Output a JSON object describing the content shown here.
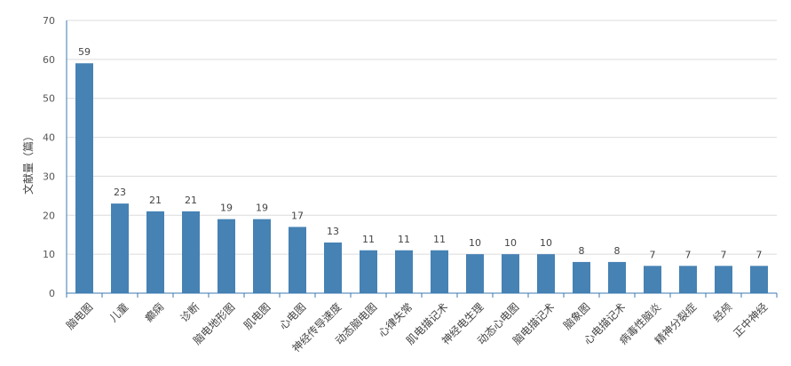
{
  "chart_data": {
    "type": "bar",
    "title": "",
    "xlabel": "",
    "ylabel": "文献量（篇）",
    "ylim": [
      0,
      70
    ],
    "yticks": [
      0,
      10,
      20,
      30,
      40,
      50,
      60,
      70
    ],
    "grid": true,
    "categories": [
      "脑电图",
      "儿童",
      "癫痫",
      "诊断",
      "脑电地形图",
      "肌电图",
      "心电图",
      "神经传导速度",
      "动态脑电图",
      "心律失常",
      "肌电描记术",
      "神经电生理",
      "动态心电图",
      "脑电描记术",
      "脑象图",
      "心电描记术",
      "病毒性脑炎",
      "精神分裂症",
      "经颅",
      "正中神经"
    ],
    "values": [
      59,
      23,
      21,
      21,
      19,
      19,
      17,
      13,
      11,
      11,
      11,
      10,
      10,
      10,
      8,
      8,
      7,
      7,
      7,
      7
    ],
    "bar_color": "#4682b4",
    "data_labels": true
  }
}
